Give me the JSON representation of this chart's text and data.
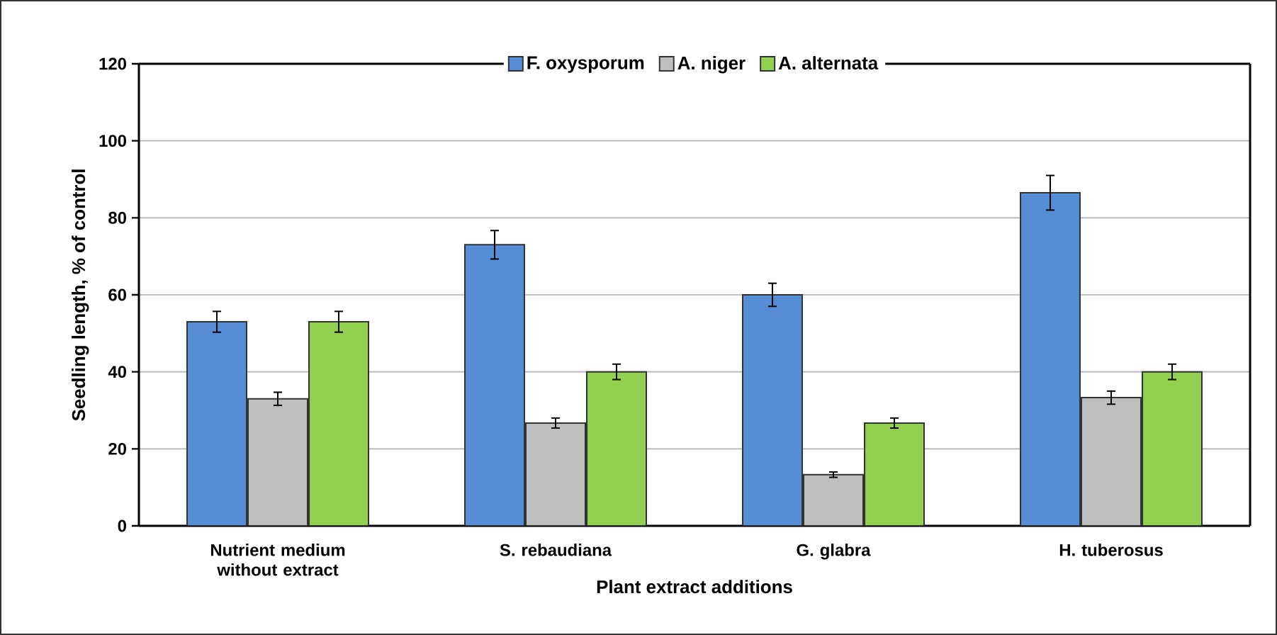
{
  "chart_data": {
    "type": "bar",
    "xlabel": "Plant extract additions",
    "ylabel": "Seedling length, % of control",
    "categories": [
      "Nutrient medium without extract",
      "S. rebaudiana",
      "G. glabra",
      "H. tuberosus"
    ],
    "series": [
      {
        "name": "F. oxysporum",
        "color": "#558ed5",
        "values": [
          53,
          73,
          60,
          86.5
        ],
        "errors": [
          2.7,
          3.7,
          3,
          4.5
        ]
      },
      {
        "name": "A. niger",
        "color": "#bfbfbf",
        "values": [
          33,
          26.7,
          13.3,
          33.3
        ],
        "errors": [
          1.7,
          1.3,
          0.7,
          1.7
        ]
      },
      {
        "name": "A. alternata",
        "color": "#92d050",
        "values": [
          53,
          40,
          26.7,
          40
        ],
        "errors": [
          2.7,
          2,
          1.3,
          2
        ]
      }
    ],
    "ylim": [
      0,
      120
    ],
    "yticks": [
      0,
      20,
      40,
      60,
      80,
      100,
      120
    ],
    "grid": "y",
    "legend": "top"
  }
}
